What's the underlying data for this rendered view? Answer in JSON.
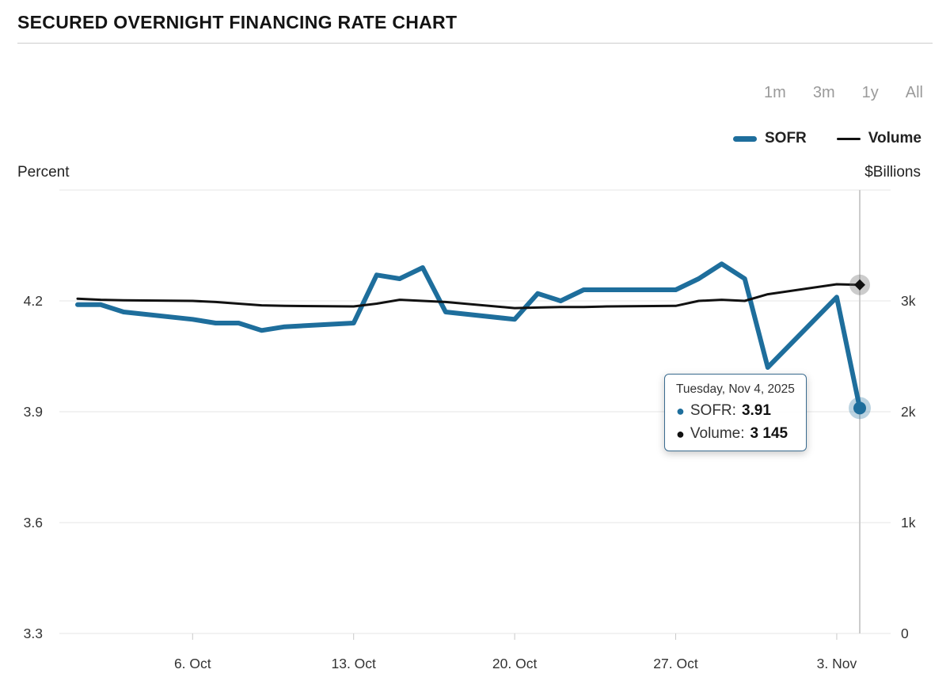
{
  "header": {
    "title": "SECURED OVERNIGHT FINANCING RATE CHART"
  },
  "range_selector": {
    "options": [
      {
        "label": "1m"
      },
      {
        "label": "3m"
      },
      {
        "label": "1y"
      },
      {
        "label": "All"
      }
    ]
  },
  "legend": {
    "items": [
      {
        "label": "SOFR",
        "color": "#1e6e9c"
      },
      {
        "label": "Volume",
        "color": "#111111"
      }
    ]
  },
  "axes": {
    "left": {
      "title": "Percent",
      "ticks": [
        "4.2",
        "3.9",
        "3.6",
        "3.3"
      ],
      "tick_values": [
        4.2,
        3.9,
        3.6,
        3.3
      ]
    },
    "right": {
      "title": "$Billions",
      "ticks": [
        "3k",
        "2k",
        "1k",
        "0"
      ],
      "tick_values": [
        3000,
        2000,
        1000,
        0
      ]
    },
    "x": {
      "ticks": [
        {
          "label": "6. Oct",
          "date": "2025-10-06"
        },
        {
          "label": "13. Oct",
          "date": "2025-10-13"
        },
        {
          "label": "20. Oct",
          "date": "2025-10-20"
        },
        {
          "label": "27. Oct",
          "date": "2025-10-27"
        },
        {
          "label": "3. Nov",
          "date": "2025-11-03"
        }
      ]
    }
  },
  "tooltip": {
    "date": "Tuesday, Nov 4, 2025",
    "rows": [
      {
        "bullet": "●",
        "label": "SOFR:",
        "value": "3.91",
        "color": "#1e6e9c"
      },
      {
        "bullet": "●",
        "label": "Volume:",
        "value": "3 145",
        "color": "#111111"
      }
    ]
  },
  "chart_data": {
    "type": "line",
    "title": "SECURED OVERNIGHT FINANCING RATE CHART",
    "xlabel": "",
    "ylabel_left": "Percent",
    "ylabel_right": "$Billions",
    "ylim_left": [
      3.3,
      4.5
    ],
    "ylim_right": [
      0,
      4000
    ],
    "grid": true,
    "legend_position": "top-right",
    "highlight_index": 24,
    "x": [
      "2025-10-01",
      "2025-10-02",
      "2025-10-03",
      "2025-10-06",
      "2025-10-07",
      "2025-10-08",
      "2025-10-09",
      "2025-10-10",
      "2025-10-13",
      "2025-10-14",
      "2025-10-15",
      "2025-10-16",
      "2025-10-17",
      "2025-10-20",
      "2025-10-21",
      "2025-10-22",
      "2025-10-23",
      "2025-10-24",
      "2025-10-27",
      "2025-10-28",
      "2025-10-29",
      "2025-10-30",
      "2025-10-31",
      "2025-11-03",
      "2025-11-04"
    ],
    "series": [
      {
        "name": "SOFR",
        "axis": "left",
        "color": "#1e6e9c",
        "width": 6,
        "values": [
          4.19,
          4.19,
          4.17,
          4.15,
          4.14,
          4.14,
          4.12,
          4.13,
          4.14,
          4.27,
          4.26,
          4.29,
          4.17,
          4.15,
          4.22,
          4.2,
          4.23,
          4.23,
          4.23,
          4.26,
          4.3,
          4.26,
          4.02,
          4.21,
          3.91
        ]
      },
      {
        "name": "Volume",
        "axis": "right",
        "color": "#111111",
        "width": 3,
        "values": [
          3020,
          3010,
          3005,
          3000,
          2990,
          2975,
          2960,
          2955,
          2950,
          2975,
          3010,
          3000,
          2990,
          2935,
          2940,
          2945,
          2945,
          2950,
          2955,
          3000,
          3010,
          3000,
          3060,
          3150,
          3145
        ]
      }
    ]
  }
}
